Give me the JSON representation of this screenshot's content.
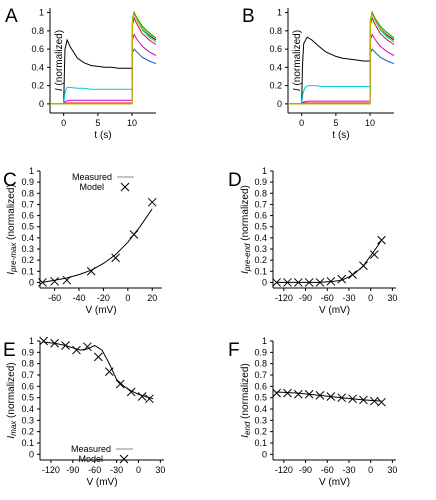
{
  "chart_data": [
    {
      "panel": "A",
      "type": "line",
      "ylabel": "I (normalized)",
      "xlabel": "t (s)",
      "xlim": [
        -2,
        13.5
      ],
      "ylim": [
        -0.1,
        1.05
      ],
      "xticks": [
        0,
        5,
        10
      ],
      "yticks": [
        0,
        0.2,
        0.4,
        0.6,
        0.8,
        1
      ],
      "grid": false,
      "series": [
        {
          "color": "#000000",
          "x": [
            -2,
            0,
            0.1,
            0.2,
            0.5,
            1,
            2,
            3,
            4,
            5,
            6,
            7,
            8,
            9,
            10,
            10.05,
            10.3,
            10.8,
            11.5,
            12.5,
            13.5
          ],
          "y": [
            0,
            0,
            0.35,
            0.6,
            0.7,
            0.62,
            0.5,
            0.45,
            0.42,
            0.41,
            0.4,
            0.4,
            0.39,
            0.39,
            0.39,
            0.9,
            1.0,
            0.92,
            0.83,
            0.75,
            0.7
          ]
        },
        {
          "color": "#00c8d8",
          "x": [
            -2,
            0,
            0.2,
            0.5,
            1,
            2,
            3,
            4,
            5,
            6,
            7,
            8,
            9,
            10,
            10.05,
            10.3,
            10.8,
            11.5,
            12.5,
            13.5
          ],
          "y": [
            0,
            0,
            0.13,
            0.18,
            0.18,
            0.17,
            0.17,
            0.16,
            0.16,
            0.16,
            0.16,
            0.16,
            0.16,
            0.16,
            0.9,
            0.98,
            0.9,
            0.81,
            0.73,
            0.68
          ]
        },
        {
          "color": "#d400d4",
          "x": [
            -2,
            0,
            0.3,
            1,
            3,
            6,
            10,
            10.05,
            10.3,
            10.8,
            11.5,
            12.5,
            13.5
          ],
          "y": [
            0,
            0,
            0.03,
            0.04,
            0.04,
            0.04,
            0.04,
            0.7,
            0.76,
            0.7,
            0.63,
            0.57,
            0.53
          ]
        },
        {
          "color": "#e01010",
          "x": [
            -2,
            0,
            0.3,
            1,
            3,
            6,
            10,
            10.05,
            10.3,
            10.8,
            11.5,
            12.5,
            13.5
          ],
          "y": [
            0,
            0,
            0.01,
            0.01,
            0.01,
            0.01,
            0.01,
            0.86,
            0.94,
            0.86,
            0.77,
            0.7,
            0.65
          ]
        },
        {
          "color": "#2050e0",
          "x": [
            -2,
            0,
            0.3,
            1,
            3,
            6,
            10,
            10.05,
            10.3,
            10.8,
            11.5,
            12.5,
            13.5
          ],
          "y": [
            0,
            0,
            0,
            0,
            0,
            0,
            0,
            0.56,
            0.6,
            0.56,
            0.51,
            0.47,
            0.44
          ]
        },
        {
          "color": "#00a000",
          "x": [
            -2,
            0,
            0.3,
            1,
            3,
            6,
            10,
            10.05,
            10.3,
            10.8,
            11.5,
            12.5,
            13.5
          ],
          "y": [
            0,
            0,
            0,
            0,
            0,
            0,
            0,
            0.92,
            1.0,
            0.93,
            0.85,
            0.78,
            0.72
          ]
        },
        {
          "color": "#e0c000",
          "x": [
            -2,
            0,
            0.3,
            1,
            3,
            6,
            10,
            10.05,
            10.3,
            10.8,
            11.5,
            12.5,
            13.5
          ],
          "y": [
            0,
            0,
            0,
            0,
            0,
            0,
            0,
            0.9,
            0.98,
            0.91,
            0.83,
            0.76,
            0.71
          ]
        }
      ]
    },
    {
      "panel": "B",
      "type": "line",
      "ylabel": "I (normalized)",
      "xlabel": "t (s)",
      "xlim": [
        -2,
        13.5
      ],
      "ylim": [
        -0.1,
        1.05
      ],
      "xticks": [
        0,
        5,
        10
      ],
      "yticks": [
        0,
        0.2,
        0.4,
        0.6,
        0.8,
        1
      ],
      "grid": false,
      "series": [
        {
          "color": "#000000",
          "x": [
            -2,
            0,
            0.1,
            0.3,
            0.8,
            1.5,
            2.5,
            3.5,
            5,
            6,
            7,
            8,
            9,
            10,
            10.05,
            10.3,
            10.8,
            11.5,
            12.5,
            13.5
          ],
          "y": [
            0,
            0,
            0.4,
            0.66,
            0.73,
            0.7,
            0.63,
            0.57,
            0.52,
            0.5,
            0.49,
            0.48,
            0.47,
            0.47,
            0.9,
            1.0,
            0.92,
            0.83,
            0.75,
            0.7
          ]
        },
        {
          "color": "#00c8d8",
          "x": [
            -2,
            0,
            0.2,
            0.5,
            1,
            2,
            3,
            4,
            5,
            6,
            7,
            8,
            9,
            10,
            10.05,
            10.3,
            10.8,
            11.5,
            12.5,
            13.5
          ],
          "y": [
            0,
            0,
            0.12,
            0.18,
            0.2,
            0.2,
            0.19,
            0.19,
            0.19,
            0.19,
            0.19,
            0.19,
            0.19,
            0.19,
            0.9,
            0.98,
            0.9,
            0.81,
            0.73,
            0.68
          ]
        },
        {
          "color": "#d400d4",
          "x": [
            -2,
            0,
            0.3,
            1,
            3,
            6,
            10,
            10.05,
            10.3,
            10.8,
            11.5,
            12.5,
            13.5
          ],
          "y": [
            0,
            0,
            0.02,
            0.03,
            0.03,
            0.03,
            0.03,
            0.7,
            0.76,
            0.7,
            0.63,
            0.57,
            0.53
          ]
        },
        {
          "color": "#e01010",
          "x": [
            -2,
            0,
            0.3,
            1,
            3,
            6,
            10,
            10.05,
            10.3,
            10.8,
            11.5,
            12.5,
            13.5
          ],
          "y": [
            0,
            0,
            0.01,
            0.01,
            0.01,
            0.01,
            0.01,
            0.86,
            0.94,
            0.86,
            0.77,
            0.7,
            0.65
          ]
        },
        {
          "color": "#2050e0",
          "x": [
            -2,
            0,
            0.3,
            1,
            3,
            6,
            10,
            10.05,
            10.3,
            10.8,
            11.5,
            12.5,
            13.5
          ],
          "y": [
            0,
            0,
            0,
            0,
            0,
            0,
            0,
            0.56,
            0.6,
            0.56,
            0.51,
            0.47,
            0.44
          ]
        },
        {
          "color": "#00a000",
          "x": [
            -2,
            0,
            0.3,
            1,
            3,
            6,
            10,
            10.05,
            10.3,
            10.8,
            11.5,
            12.5,
            13.5
          ],
          "y": [
            0,
            0,
            0,
            0,
            0,
            0,
            0,
            0.92,
            1.0,
            0.93,
            0.85,
            0.78,
            0.72
          ]
        },
        {
          "color": "#e0c000",
          "x": [
            -2,
            0,
            0.3,
            1,
            3,
            6,
            10,
            10.05,
            10.3,
            10.8,
            11.5,
            12.5,
            13.5
          ],
          "y": [
            0,
            0,
            0,
            0,
            0,
            0,
            0,
            0.9,
            0.98,
            0.91,
            0.83,
            0.76,
            0.71
          ]
        }
      ]
    },
    {
      "panel": "C",
      "type": "scatter",
      "ylabel": "I_pre-max (normalized)",
      "ylabel_main": "I",
      "ylabel_sub": "pre-max",
      "ylabel_rest": " (normalized)",
      "xlabel": "V (mV)",
      "xlim": [
        -72,
        28
      ],
      "ylim": [
        -0.05,
        1
      ],
      "xticks": [
        -60,
        -40,
        -20,
        0,
        20
      ],
      "yticks": [
        0,
        0.1,
        0.2,
        0.3,
        0.4,
        0.5,
        0.6,
        0.7,
        0.8,
        0.9,
        1
      ],
      "legend": {
        "position": "top",
        "entries": [
          "Measured",
          "Model"
        ]
      },
      "measured": {
        "x": [
          -70,
          -60,
          -50,
          -30,
          -10,
          5,
          20
        ],
        "y": [
          0,
          0.01,
          0.02,
          0.1,
          0.22,
          0.43,
          0.72
        ]
      },
      "model": {
        "x": [
          -70,
          -60,
          -50,
          -40,
          -30,
          -20,
          -10,
          0,
          10,
          20
        ],
        "y": [
          0.0,
          0.02,
          0.04,
          0.07,
          0.11,
          0.17,
          0.25,
          0.36,
          0.5,
          0.66
        ]
      }
    },
    {
      "panel": "D",
      "type": "scatter",
      "ylabel": "I_pre-end (normalized)",
      "ylabel_main": "I",
      "ylabel_sub": "pre-end",
      "ylabel_rest": " (normalized)",
      "xlabel": "V (mV)",
      "xlim": [
        -135,
        35
      ],
      "ylim": [
        -0.05,
        1
      ],
      "xticks": [
        -120,
        -90,
        -60,
        -30,
        0,
        30
      ],
      "yticks": [
        0,
        0.1,
        0.2,
        0.3,
        0.4,
        0.5,
        0.6,
        0.7,
        0.8,
        0.9,
        1
      ],
      "measured": {
        "x": [
          -130,
          -115,
          -100,
          -85,
          -70,
          -55,
          -40,
          -25,
          -10,
          5,
          15
        ],
        "y": [
          0,
          0,
          0,
          0,
          0,
          0.01,
          0.03,
          0.07,
          0.15,
          0.25,
          0.38
        ]
      },
      "model": {
        "x": [
          -130,
          -100,
          -70,
          -50,
          -40,
          -30,
          -20,
          -10,
          0,
          10,
          15
        ],
        "y": [
          0,
          0,
          0,
          0.01,
          0.02,
          0.05,
          0.09,
          0.15,
          0.24,
          0.33,
          0.38
        ]
      }
    },
    {
      "panel": "E",
      "type": "scatter",
      "ylabel": "I_max (normalized)",
      "ylabel_main": "I",
      "ylabel_sub": "max",
      "ylabel_rest": " (normalized)",
      "xlabel": "V (mV)",
      "xlim": [
        -135,
        35
      ],
      "ylim": [
        -0.05,
        1
      ],
      "xticks": [
        -120,
        -90,
        -60,
        -30,
        0,
        30
      ],
      "yticks": [
        0,
        0.1,
        0.2,
        0.3,
        0.4,
        0.5,
        0.6,
        0.7,
        0.8,
        0.9,
        1
      ],
      "legend": {
        "position": "bottom-left",
        "entries": [
          "Measured",
          "Model"
        ]
      },
      "measured": {
        "x": [
          -130,
          -115,
          -100,
          -85,
          -70,
          -55,
          -40,
          -25,
          -10,
          5,
          15
        ],
        "y": [
          1.0,
          0.98,
          0.96,
          0.92,
          0.95,
          0.86,
          0.73,
          0.62,
          0.55,
          0.51,
          0.49
        ]
      },
      "model": {
        "x": [
          -130,
          -115,
          -100,
          -90,
          -80,
          -70,
          -60,
          -50,
          -40,
          -30,
          -20,
          -10,
          0,
          10,
          20
        ],
        "y": [
          0.99,
          0.98,
          0.96,
          0.94,
          0.92,
          0.93,
          0.96,
          0.92,
          0.8,
          0.66,
          0.6,
          0.56,
          0.53,
          0.51,
          0.49
        ]
      }
    },
    {
      "panel": "F",
      "type": "scatter",
      "ylabel": "I_end (normalized)",
      "ylabel_main": "I",
      "ylabel_sub": "end",
      "ylabel_rest": " (normalized)",
      "xlabel": "V (mV)",
      "xlim": [
        -135,
        35
      ],
      "ylim": [
        -0.05,
        1
      ],
      "xticks": [
        -120,
        -90,
        -60,
        -30,
        0,
        30
      ],
      "yticks": [
        0,
        0.1,
        0.2,
        0.3,
        0.4,
        0.5,
        0.6,
        0.7,
        0.8,
        0.9,
        1
      ],
      "measured": {
        "x": [
          -130,
          -115,
          -100,
          -85,
          -70,
          -55,
          -40,
          -25,
          -10,
          5,
          15
        ],
        "y": [
          0.54,
          0.54,
          0.53,
          0.53,
          0.52,
          0.51,
          0.5,
          0.49,
          0.48,
          0.47,
          0.46
        ]
      },
      "model": {
        "x": [
          -130,
          -100,
          -70,
          -40,
          -10,
          15
        ],
        "y": [
          0.55,
          0.54,
          0.52,
          0.5,
          0.48,
          0.47
        ]
      }
    }
  ]
}
